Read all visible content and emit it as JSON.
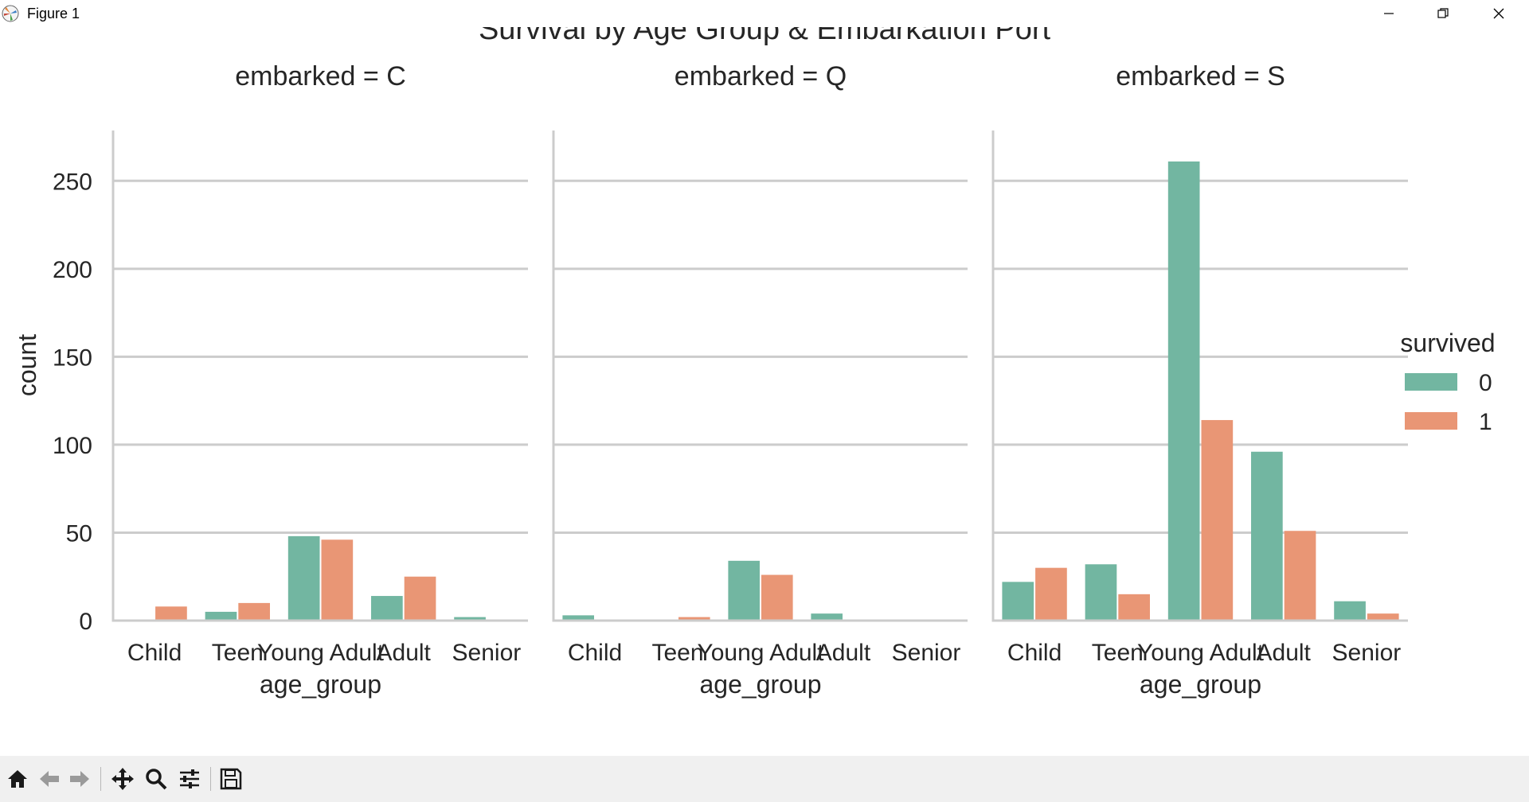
{
  "window": {
    "title": "Figure 1"
  },
  "colors": {
    "survived_0": "#72b6a1",
    "survived_1": "#e99675",
    "grid": "#cccccc",
    "axis": "#cccccc"
  },
  "toolbar": {
    "icons": [
      "home-icon",
      "back-arrow-icon",
      "forward-arrow-icon",
      "pan-icon",
      "zoom-icon",
      "configure-subplots-icon",
      "save-icon"
    ]
  },
  "chart_data": {
    "type": "bar",
    "title": "Survival by Age Group & Embarkation Port",
    "xlabel": "age_group",
    "ylabel": "count",
    "ylim": [
      0,
      275
    ],
    "yticks": [
      0,
      50,
      100,
      150,
      200,
      250
    ],
    "grid": true,
    "legend": {
      "title": "survived",
      "placement": "right",
      "entries": [
        "0",
        "1"
      ]
    },
    "categories": [
      "Child",
      "Teen",
      "Young Adult",
      "Adult",
      "Senior"
    ],
    "panels": [
      {
        "title": "embarked = C",
        "series": [
          {
            "name": "0",
            "values": [
              0,
              5,
              48,
              14,
              2
            ]
          },
          {
            "name": "1",
            "values": [
              8,
              10,
              46,
              25,
              0
            ]
          }
        ]
      },
      {
        "title": "embarked = Q",
        "series": [
          {
            "name": "0",
            "values": [
              3,
              0,
              34,
              4,
              0
            ]
          },
          {
            "name": "1",
            "values": [
              0,
              2,
              26,
              0,
              0
            ]
          }
        ]
      },
      {
        "title": "embarked = S",
        "series": [
          {
            "name": "0",
            "values": [
              22,
              32,
              261,
              96,
              11
            ]
          },
          {
            "name": "1",
            "values": [
              30,
              15,
              114,
              51,
              4
            ]
          }
        ]
      }
    ]
  }
}
